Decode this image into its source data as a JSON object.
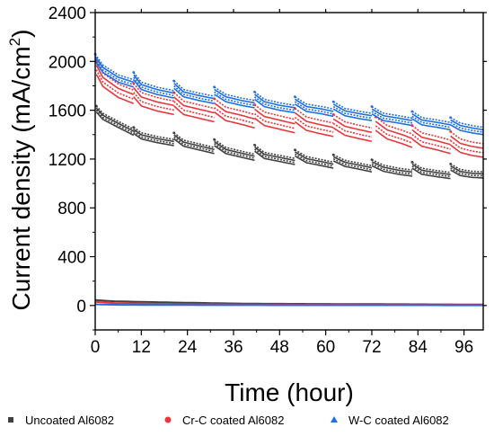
{
  "chart_data": {
    "type": "line",
    "title": "",
    "xlabel": "Time (hour)",
    "ylabel_main": "Current density (mA/cm",
    "ylabel_sup": "2",
    "ylabel_close": ")",
    "xlim": [
      0,
      101
    ],
    "ylim": [
      -200,
      2400
    ],
    "xticks": [
      0,
      12,
      24,
      36,
      48,
      60,
      72,
      84,
      96
    ],
    "yticks": [
      0,
      400,
      800,
      1200,
      1600,
      2000,
      2400
    ],
    "grid": false,
    "legend_position": "bottom",
    "cycle_restarts_hours": [
      0,
      10,
      20.5,
      31,
      41.5,
      52,
      62,
      72,
      82.5,
      92.5,
      101
    ],
    "series": [
      {
        "name": "Uncoated Al6082",
        "color": "#404040",
        "marker": "square",
        "band_width": 50,
        "segments": [
          {
            "x": [
              0.3,
              2,
              5,
              10
            ],
            "y": [
              1610,
              1550,
              1500,
              1420
            ]
          },
          {
            "x": [
              10,
              12,
              16,
              20.5
            ],
            "y": [
              1435,
              1390,
              1360,
              1335
            ]
          },
          {
            "x": [
              20.5,
              23,
              27,
              31
            ],
            "y": [
              1390,
              1330,
              1300,
              1270
            ]
          },
          {
            "x": [
              31,
              34,
              38,
              41.5
            ],
            "y": [
              1335,
              1270,
              1240,
              1215
            ]
          },
          {
            "x": [
              41.5,
              44,
              48,
              52
            ],
            "y": [
              1290,
              1230,
              1205,
              1180
            ]
          },
          {
            "x": [
              52,
              55,
              59,
              62
            ],
            "y": [
              1250,
              1195,
              1170,
              1150
            ]
          },
          {
            "x": [
              62,
              65,
              69,
              72
            ],
            "y": [
              1210,
              1165,
              1140,
              1120
            ]
          },
          {
            "x": [
              72,
              75,
              79,
              82.5
            ],
            "y": [
              1170,
              1125,
              1100,
              1085
            ]
          },
          {
            "x": [
              82.5,
              85,
              89,
              92.5
            ],
            "y": [
              1150,
              1100,
              1080,
              1065
            ]
          },
          {
            "x": [
              92.5,
              95,
              98,
              101
            ],
            "y": [
              1135,
              1090,
              1075,
              1070
            ]
          }
        ],
        "baseline": {
          "x": [
            0,
            5,
            20,
            40,
            101
          ],
          "y": [
            45,
            35,
            25,
            15,
            8
          ]
        }
      },
      {
        "name": "Cr-C coated Al6082",
        "color": "#e8363b",
        "marker": "circle",
        "band_width": 110,
        "segments": [
          {
            "x": [
              0.3,
              2,
              6,
              10
            ],
            "y": [
              1950,
              1850,
              1760,
              1710
            ]
          },
          {
            "x": [
              10,
              12,
              16,
              20.5
            ],
            "y": [
              1765,
              1690,
              1650,
              1620
            ]
          },
          {
            "x": [
              20.5,
              23,
              27,
              31
            ],
            "y": [
              1690,
              1620,
              1590,
              1560
            ]
          },
          {
            "x": [
              31,
              34,
              38,
              41.5
            ],
            "y": [
              1640,
              1570,
              1540,
              1510
            ]
          },
          {
            "x": [
              41.5,
              44,
              48,
              52
            ],
            "y": [
              1590,
              1530,
              1500,
              1470
            ]
          },
          {
            "x": [
              52,
              55,
              59,
              62
            ],
            "y": [
              1560,
              1490,
              1460,
              1440
            ]
          },
          {
            "x": [
              62,
              65,
              69,
              72
            ],
            "y": [
              1510,
              1450,
              1420,
              1400
            ]
          },
          {
            "x": [
              73,
              76,
              80,
              82.5
            ],
            "y": [
              1490,
              1420,
              1380,
              1350
            ]
          },
          {
            "x": [
              82.5,
              85,
              89,
              92.5
            ],
            "y": [
              1420,
              1360,
              1330,
              1300
            ]
          },
          {
            "x": [
              92.5,
              95,
              98,
              101
            ],
            "y": [
              1370,
              1310,
              1285,
              1270
            ]
          }
        ],
        "baseline": {
          "x": [
            0,
            5,
            20,
            40,
            101
          ],
          "y": [
            30,
            20,
            12,
            8,
            5
          ]
        }
      },
      {
        "name": "W-C coated Al6082",
        "color": "#1f6fe0",
        "marker": "triangle",
        "band_width": 60,
        "segments": [
          {
            "x": [
              0,
              2,
              6,
              10
            ],
            "y": [
              2030,
              1940,
              1860,
              1820
            ]
          },
          {
            "x": [
              10,
              12,
              16,
              20.5
            ],
            "y": [
              1880,
              1800,
              1760,
              1730
            ]
          },
          {
            "x": [
              20.5,
              23,
              27,
              31
            ],
            "y": [
              1810,
              1740,
              1710,
              1685
            ]
          },
          {
            "x": [
              31,
              34,
              38,
              41.5
            ],
            "y": [
              1760,
              1700,
              1670,
              1650
            ]
          },
          {
            "x": [
              41.5,
              44,
              48,
              52
            ],
            "y": [
              1720,
              1660,
              1630,
              1610
            ]
          },
          {
            "x": [
              52,
              55,
              59,
              62
            ],
            "y": [
              1680,
              1620,
              1600,
              1580
            ]
          },
          {
            "x": [
              62,
              65,
              69,
              72
            ],
            "y": [
              1640,
              1585,
              1560,
              1545
            ]
          },
          {
            "x": [
              72,
              75,
              79,
              82.5
            ],
            "y": [
              1600,
              1545,
              1525,
              1505
            ]
          },
          {
            "x": [
              82.5,
              85,
              89,
              92.5
            ],
            "y": [
              1560,
              1510,
              1490,
              1470
            ]
          },
          {
            "x": [
              92.5,
              95,
              98,
              101
            ],
            "y": [
              1510,
              1465,
              1445,
              1430
            ]
          }
        ],
        "baseline": {
          "x": [
            0,
            5,
            20,
            40,
            101
          ],
          "y": [
            10,
            6,
            4,
            3,
            2
          ]
        }
      }
    ]
  }
}
